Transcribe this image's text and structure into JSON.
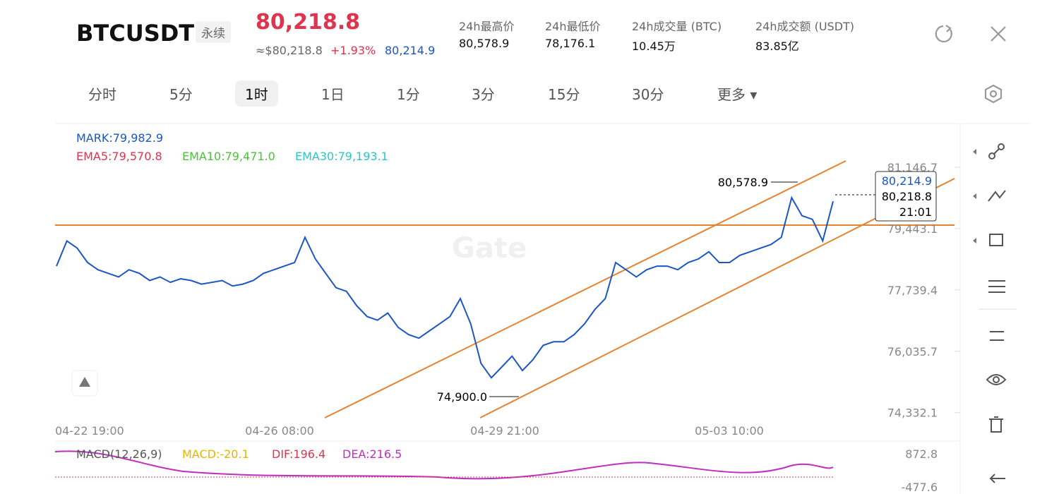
{
  "header": {
    "symbol": "BTCUSDT",
    "contract": "永续",
    "last_price": "80,218.8",
    "usd_price": "≈$80,218.8",
    "change": "+1.93%",
    "mark_price": "80,214.9",
    "stats": [
      {
        "label": "24h最高价",
        "value": "80,578.9"
      },
      {
        "label": "24h最低价",
        "value": "78,176.1"
      },
      {
        "label": "24h成交量 (BTC)",
        "value": "10.45万"
      },
      {
        "label": "24h成交额 (USDT)",
        "value": "83.85亿"
      }
    ]
  },
  "tabs": [
    "分时",
    "5分",
    "1时",
    "1日",
    "1分",
    "3分",
    "15分",
    "30分",
    "更多"
  ],
  "chart": {
    "legend": {
      "mark": "MARK:79,982.9",
      "ema5": "EMA5:79,570.8",
      "ema10": "EMA10:79,471.0",
      "ema30": "EMA30:79,193.1"
    },
    "ylim": [
      74190,
      82360
    ],
    "yticks": [
      {
        "value": 81146.7,
        "label": "81,146.7"
      },
      {
        "value": 79443.1,
        "label": "79,443.1"
      },
      {
        "value": 77739.4,
        "label": "77,739.4"
      },
      {
        "value": 76035.7,
        "label": "76,035.7"
      },
      {
        "value": 74332.1,
        "label": "74,332.1"
      }
    ],
    "xlabels": [
      "04-22 19:00",
      "04-26 08:00",
      "04-29 21:00",
      "05-03 10:00"
    ],
    "high_label": "80,578.9",
    "low_label": "74,900.0",
    "price_box": {
      "mark": "80,214.9",
      "last": "80,218.8",
      "countdown": "21:01"
    },
    "closes": [
      78400,
      79100,
      78900,
      78500,
      78300,
      78200,
      78100,
      78300,
      78200,
      78000,
      78100,
      77950,
      78050,
      78000,
      77900,
      77950,
      78000,
      77850,
      77900,
      78000,
      78200,
      78300,
      78400,
      78500,
      79200,
      78600,
      78200,
      77800,
      77700,
      77300,
      77000,
      76900,
      77100,
      76700,
      76500,
      76400,
      76600,
      76800,
      77000,
      77500,
      76800,
      75700,
      75300,
      75600,
      75900,
      75500,
      75800,
      76200,
      76300,
      76300,
      76500,
      76800,
      77200,
      77500,
      78500,
      78300,
      78100,
      78300,
      78400,
      78400,
      78300,
      78500,
      78600,
      78800,
      78500,
      78500,
      78700,
      78800,
      78900,
      79000,
      79200,
      80300,
      79800,
      79700,
      79100,
      80200
    ]
  },
  "macd": {
    "title": "MACD(12,26,9)",
    "macd": "MACD:-20.1",
    "dif": "DIF:196.4",
    "dea": "DEA:216.5",
    "top": "872.8",
    "bottom": "-477.6"
  }
}
